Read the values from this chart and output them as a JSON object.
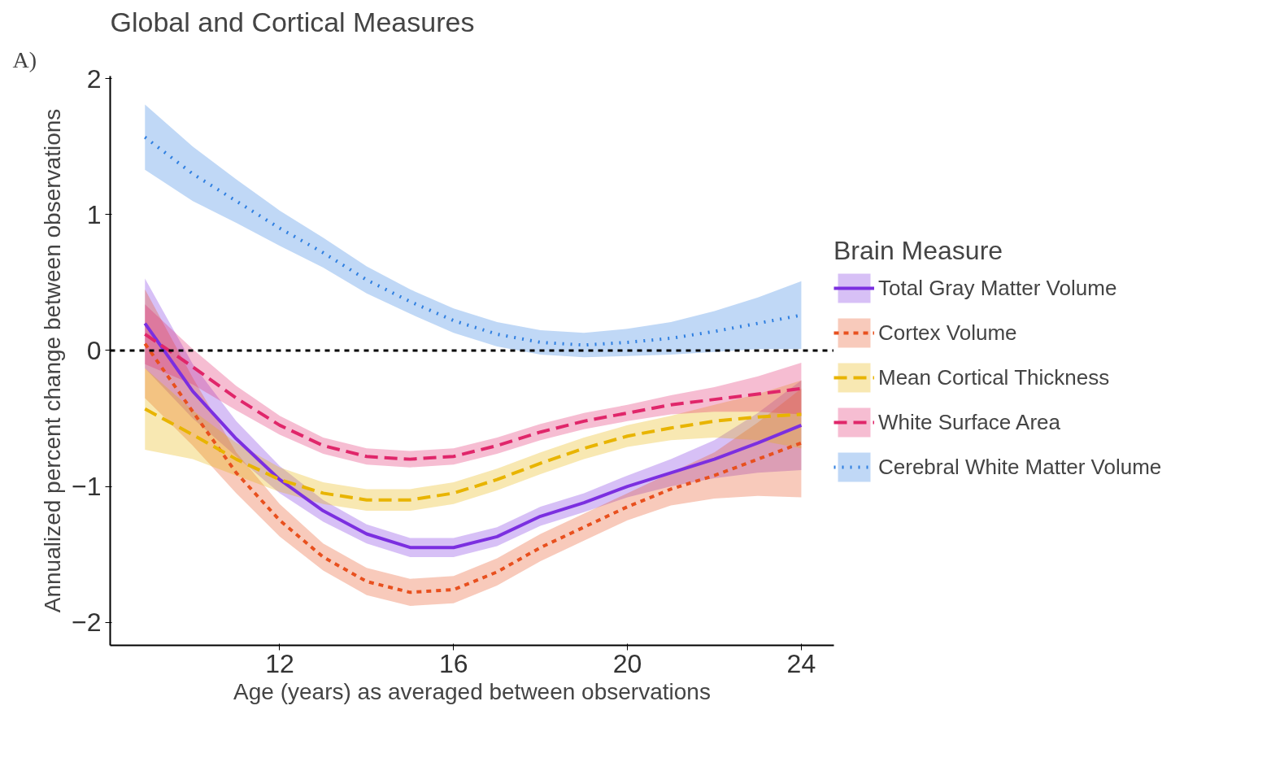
{
  "chart_data": {
    "type": "line",
    "title": "Global and Cortical Measures",
    "xlabel": "Age (years) as averaged between observations",
    "ylabel": "Annualized percent change between observations",
    "legend_title": "Brain Measure",
    "legend": "right",
    "grid": false,
    "annotations": [
      "A)"
    ],
    "x": [
      8.9,
      10,
      11,
      12,
      13,
      14,
      15,
      16,
      17,
      18,
      19,
      20,
      21,
      22,
      23,
      24
    ],
    "xlim": [
      8.1,
      24.75
    ],
    "xticks": [
      12,
      16,
      20,
      24
    ],
    "ylim": [
      -2.17,
      2.02
    ],
    "yticks": [
      -2,
      -1,
      0,
      1,
      2
    ],
    "ref_lines": [
      {
        "axis": "y",
        "value": 0,
        "color": "#000000",
        "line_style": "dashed"
      }
    ],
    "series": [
      {
        "name": "Total Gray Matter Volume",
        "color": "#7b2fe0",
        "line_style": "solid",
        "values": [
          0.2,
          -0.3,
          -0.65,
          -0.95,
          -1.18,
          -1.35,
          -1.45,
          -1.45,
          -1.37,
          -1.22,
          -1.12,
          -1.0,
          -0.9,
          -0.8,
          -0.68,
          -0.55
        ],
        "lower": [
          -0.13,
          -0.5,
          -0.78,
          -1.05,
          -1.26,
          -1.42,
          -1.52,
          -1.52,
          -1.44,
          -1.29,
          -1.19,
          -1.08,
          -1.0,
          -0.94,
          -0.9,
          -0.88
        ],
        "upper": [
          0.53,
          -0.1,
          -0.52,
          -0.85,
          -1.1,
          -1.28,
          -1.38,
          -1.38,
          -1.3,
          -1.15,
          -1.05,
          -0.92,
          -0.8,
          -0.66,
          -0.46,
          -0.22
        ]
      },
      {
        "name": "Cortex Volume",
        "color": "#e8501e",
        "line_style": "dashed",
        "values": [
          0.05,
          -0.45,
          -0.9,
          -1.25,
          -1.52,
          -1.7,
          -1.78,
          -1.76,
          -1.63,
          -1.45,
          -1.3,
          -1.15,
          -1.02,
          -0.92,
          -0.8,
          -0.68
        ],
        "lower": [
          -0.35,
          -0.7,
          -1.05,
          -1.37,
          -1.62,
          -1.8,
          -1.88,
          -1.86,
          -1.73,
          -1.55,
          -1.4,
          -1.25,
          -1.14,
          -1.09,
          -1.07,
          -1.08
        ],
        "upper": [
          0.45,
          -0.2,
          -0.75,
          -1.13,
          -1.42,
          -1.6,
          -1.68,
          -1.66,
          -1.53,
          -1.35,
          -1.2,
          -1.05,
          -0.9,
          -0.75,
          -0.53,
          -0.28
        ]
      },
      {
        "name": "Mean Cortical Thickness",
        "color": "#e8b400",
        "line_style": "longdash",
        "values": [
          -0.43,
          -0.62,
          -0.8,
          -0.95,
          -1.05,
          -1.1,
          -1.1,
          -1.05,
          -0.95,
          -0.83,
          -0.72,
          -0.63,
          -0.57,
          -0.52,
          -0.49,
          -0.47
        ],
        "lower": [
          -0.73,
          -0.8,
          -0.92,
          -1.04,
          -1.13,
          -1.18,
          -1.18,
          -1.13,
          -1.03,
          -0.91,
          -0.8,
          -0.71,
          -0.66,
          -0.64,
          -0.66,
          -0.72
        ],
        "upper": [
          -0.13,
          -0.44,
          -0.68,
          -0.86,
          -0.97,
          -1.02,
          -1.02,
          -0.97,
          -0.87,
          -0.75,
          -0.64,
          -0.55,
          -0.48,
          -0.4,
          -0.32,
          -0.22
        ]
      },
      {
        "name": "White Surface Area",
        "color": "#e0266a",
        "line_style": "longdash",
        "values": [
          0.12,
          -0.12,
          -0.35,
          -0.55,
          -0.7,
          -0.78,
          -0.8,
          -0.78,
          -0.7,
          -0.6,
          -0.52,
          -0.46,
          -0.4,
          -0.36,
          -0.32,
          -0.28
        ],
        "lower": [
          -0.1,
          -0.25,
          -0.44,
          -0.62,
          -0.76,
          -0.84,
          -0.86,
          -0.84,
          -0.76,
          -0.66,
          -0.58,
          -0.52,
          -0.47,
          -0.45,
          -0.45,
          -0.47
        ],
        "upper": [
          0.34,
          0.01,
          -0.26,
          -0.48,
          -0.64,
          -0.72,
          -0.74,
          -0.72,
          -0.64,
          -0.54,
          -0.46,
          -0.4,
          -0.33,
          -0.27,
          -0.19,
          -0.09
        ]
      },
      {
        "name": "Cerebral White Matter Volume",
        "color": "#2f7fe0",
        "line_style": "dotted",
        "values": [
          1.57,
          1.3,
          1.1,
          0.9,
          0.72,
          0.52,
          0.36,
          0.22,
          0.12,
          0.06,
          0.04,
          0.06,
          0.09,
          0.14,
          0.2,
          0.26
        ],
        "lower": [
          1.33,
          1.1,
          0.94,
          0.77,
          0.61,
          0.42,
          0.27,
          0.13,
          0.03,
          -0.03,
          -0.05,
          -0.04,
          -0.03,
          -0.01,
          0.01,
          0.01
        ],
        "upper": [
          1.81,
          1.5,
          1.26,
          1.03,
          0.83,
          0.62,
          0.45,
          0.31,
          0.21,
          0.15,
          0.13,
          0.16,
          0.21,
          0.29,
          0.39,
          0.51
        ]
      }
    ]
  }
}
